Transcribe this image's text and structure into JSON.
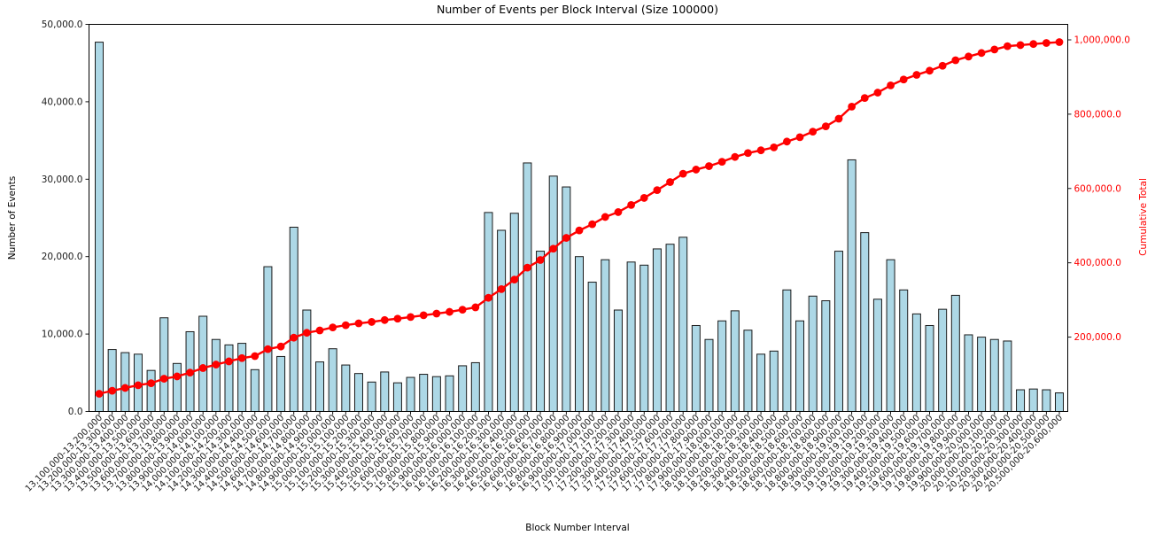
{
  "chart_data": {
    "type": "bar",
    "title": "Number of Events per Block Interval (Size 100000)",
    "xlabel": "Block Number Interval",
    "ylabel_left": "Number of Events",
    "ylabel_right": "Cumulative Total",
    "legend_position": "none",
    "grid": false,
    "colors": {
      "bar_fill": "#add8e6",
      "bar_edge": "#1a1a1a",
      "line": "#ff0000",
      "axis_text": "#1a1a1a",
      "spine": "#000000",
      "background": "#ffffff"
    },
    "left_axis": {
      "min": 0,
      "max": 50000,
      "tick_values": [
        0,
        10000,
        20000,
        30000,
        40000,
        50000
      ],
      "tick_labels": [
        "0.0",
        "10,000.0",
        "20,000.0",
        "30,000.0",
        "40,000.0",
        "50,000.0"
      ]
    },
    "right_axis": {
      "min": 0,
      "top_tick": 1000000,
      "tick_values": [
        200000,
        400000,
        600000,
        800000,
        1000000
      ],
      "tick_labels": [
        "200,000.0",
        "400,000.0",
        "600,000.0",
        "800,000.0",
        "1,000,000.0"
      ]
    },
    "categories": [
      "13,100,000-13,200,000",
      "13,200,000-13,300,000",
      "13,300,000-13,400,000",
      "13,400,000-13,500,000",
      "13,500,000-13,600,000",
      "13,600,000-13,700,000",
      "13,700,000-13,800,000",
      "13,800,000-13,900,000",
      "13,900,000-14,000,000",
      "14,000,000-14,100,000",
      "14,100,000-14,200,000",
      "14,200,000-14,300,000",
      "14,300,000-14,400,000",
      "14,400,000-14,500,000",
      "14,500,000-14,600,000",
      "14,600,000-14,700,000",
      "14,700,000-14,800,000",
      "14,800,000-14,900,000",
      "14,900,000-15,000,000",
      "15,000,000-15,100,000",
      "15,100,000-15,200,000",
      "15,200,000-15,300,000",
      "15,300,000-15,400,000",
      "15,400,000-15,500,000",
      "15,500,000-15,600,000",
      "15,600,000-15,700,000",
      "15,700,000-15,800,000",
      "15,800,000-15,900,000",
      "15,900,000-16,000,000",
      "16,000,000-16,100,000",
      "16,100,000-16,200,000",
      "16,200,000-16,300,000",
      "16,300,000-16,400,000",
      "16,400,000-16,500,000",
      "16,500,000-16,600,000",
      "16,600,000-16,700,000",
      "16,700,000-16,800,000",
      "16,800,000-16,900,000",
      "16,900,000-17,000,000",
      "17,000,000-17,100,000",
      "17,100,000-17,200,000",
      "17,200,000-17,300,000",
      "17,300,000-17,400,000",
      "17,400,000-17,500,000",
      "17,500,000-17,600,000",
      "17,600,000-17,700,000",
      "17,700,000-17,800,000",
      "17,800,000-17,900,000",
      "17,900,000-18,000,000",
      "18,000,000-18,100,000",
      "18,100,000-18,200,000",
      "18,200,000-18,300,000",
      "18,300,000-18,400,000",
      "18,400,000-18,500,000",
      "18,500,000-18,600,000",
      "18,600,000-18,700,000",
      "18,700,000-18,800,000",
      "18,800,000-18,900,000",
      "18,900,000-19,000,000",
      "19,000,000-19,100,000",
      "19,100,000-19,200,000",
      "19,200,000-19,300,000",
      "19,300,000-19,400,000",
      "19,400,000-19,500,000",
      "19,500,000-19,600,000",
      "19,600,000-19,700,000",
      "19,700,000-19,800,000",
      "19,800,000-19,900,000",
      "19,900,000-20,000,000",
      "20,000,000-20,100,000",
      "20,100,000-20,200,000",
      "20,200,000-20,300,000",
      "20,300,000-20,400,000",
      "20,400,000-20,500,000",
      "20,500,000-20,600,000"
    ],
    "series": [
      {
        "name": "Number of Events",
        "type": "bar",
        "axis": "left",
        "values": [
          47700,
          8000,
          7600,
          7400,
          5300,
          12100,
          6200,
          10300,
          12300,
          9300,
          8600,
          8800,
          5400,
          18700,
          7100,
          23800,
          13100,
          6400,
          8100,
          6000,
          4900,
          3800,
          5100,
          3700,
          4400,
          4800,
          4500,
          4600,
          5900,
          6300,
          25700,
          23400,
          25600,
          32100,
          20700,
          30400,
          29000,
          20000,
          16700,
          19600,
          13100,
          19300,
          18900,
          21000,
          21600,
          22500,
          11100,
          9300,
          11700,
          13000,
          10500,
          7400,
          7800,
          15700,
          11700,
          14900,
          14300,
          20700,
          32500,
          23100,
          14500,
          19600,
          15700,
          12600,
          11100,
          13200,
          15000,
          9900,
          9600,
          9300,
          9100,
          2800,
          2900,
          2800,
          2400
        ]
      },
      {
        "name": "Cumulative Total",
        "type": "line",
        "axis": "right",
        "derived": "running cumulative sum of bar values, ending near 1,000,000"
      }
    ]
  }
}
